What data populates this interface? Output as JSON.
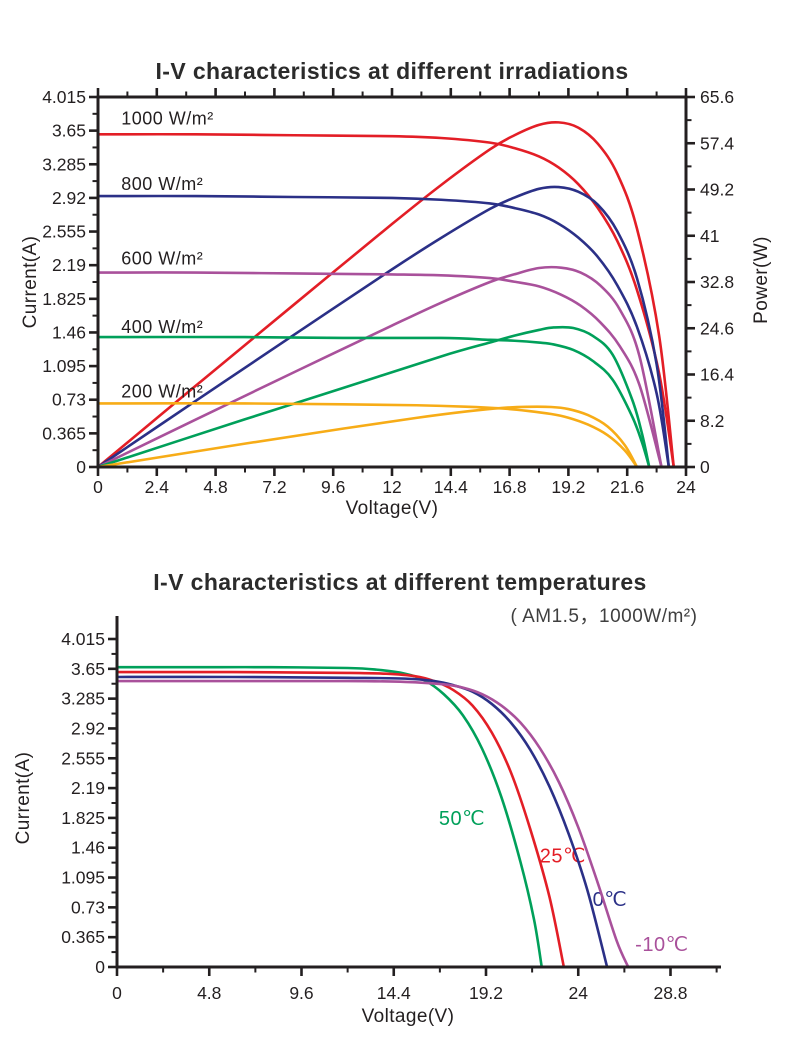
{
  "figure": {
    "background": "#ffffff",
    "text_color": "#231f20"
  },
  "chart_data": [
    {
      "chart_type": "line",
      "title": "I-V characteristics at different irradiations",
      "xlabel": "Voltage(V)",
      "ylabel_left": "Current(A)",
      "ylabel_right": "Power(W)",
      "xlim": [
        0,
        24
      ],
      "ylim_left": [
        0,
        4.015
      ],
      "ylim_right": [
        0,
        65.6
      ],
      "x_ticks": [
        0,
        2.4,
        4.8,
        7.2,
        9.6,
        12,
        14.4,
        16.8,
        19.2,
        21.6,
        24
      ],
      "y_left_ticks": [
        0,
        0.365,
        0.73,
        1.095,
        1.46,
        1.825,
        2.19,
        2.555,
        2.92,
        3.285,
        3.65,
        4.015
      ],
      "y_right_ticks": [
        0,
        8.2,
        16.4,
        24.6,
        32.8,
        41,
        49.2,
        57.4,
        65.6
      ],
      "grid": false,
      "power_curves": "For each irradiance a power curve P = V × I is drawn against the right axis",
      "series": [
        {
          "name": "1000 W/m²",
          "color": "#e31e26",
          "isc_A": 3.61,
          "voc_V": 23.5,
          "peak_power_W": 61,
          "label_pos": {
            "v": 0.95,
            "i": 3.78,
            "anchor": "start"
          },
          "iv_points": [
            [
              0,
              3.61
            ],
            [
              4,
              3.61
            ],
            [
              8,
              3.6
            ],
            [
              12,
              3.59
            ],
            [
              14,
              3.57
            ],
            [
              16,
              3.52
            ],
            [
              17,
              3.46
            ],
            [
              18,
              3.37
            ],
            [
              18.8,
              3.25
            ],
            [
              19.6,
              3.07
            ],
            [
              20.4,
              2.81
            ],
            [
              21.2,
              2.45
            ],
            [
              22,
              1.92
            ],
            [
              22.9,
              1.02
            ],
            [
              23.5,
              0
            ]
          ]
        },
        {
          "name": "800 W/m²",
          "color": "#2b3087",
          "isc_A": 2.94,
          "voc_V": 23.3,
          "peak_power_W": 49.6,
          "label_pos": {
            "v": 0.95,
            "i": 3.07,
            "anchor": "start"
          },
          "iv_points": [
            [
              0,
              2.94
            ],
            [
              4,
              2.94
            ],
            [
              8,
              2.93
            ],
            [
              12,
              2.92
            ],
            [
              14,
              2.9
            ],
            [
              16,
              2.86
            ],
            [
              17,
              2.81
            ],
            [
              18,
              2.74
            ],
            [
              18.8,
              2.64
            ],
            [
              19.6,
              2.49
            ],
            [
              20.4,
              2.28
            ],
            [
              21.2,
              1.97
            ],
            [
              22,
              1.52
            ],
            [
              22.8,
              0.8
            ],
            [
              23.3,
              0
            ]
          ]
        },
        {
          "name": "600 W/m²",
          "color": "#a9519b",
          "isc_A": 2.11,
          "voc_V": 23,
          "peak_power_W": 35.5,
          "label_pos": {
            "v": 0.95,
            "i": 2.26,
            "anchor": "start"
          },
          "iv_points": [
            [
              0,
              2.11
            ],
            [
              4,
              2.11
            ],
            [
              8,
              2.1
            ],
            [
              12,
              2.09
            ],
            [
              14,
              2.08
            ],
            [
              16,
              2.05
            ],
            [
              17,
              2.01
            ],
            [
              18,
              1.96
            ],
            [
              18.9,
              1.87
            ],
            [
              19.7,
              1.75
            ],
            [
              20.5,
              1.57
            ],
            [
              21.3,
              1.31
            ],
            [
              22.1,
              0.89
            ],
            [
              23,
              0
            ]
          ]
        },
        {
          "name": "400 W/m²",
          "color": "#00a05a",
          "isc_A": 1.41,
          "voc_V": 22.5,
          "peak_power_W": 24.7,
          "label_pos": {
            "v": 0.95,
            "i": 1.52,
            "anchor": "start"
          },
          "iv_points": [
            [
              0,
              1.41
            ],
            [
              6,
              1.41
            ],
            [
              10,
              1.4
            ],
            [
              14,
              1.4
            ],
            [
              16,
              1.38
            ],
            [
              17,
              1.37
            ],
            [
              18,
              1.35
            ],
            [
              18.6,
              1.33
            ],
            [
              19.4,
              1.27
            ],
            [
              20.2,
              1.15
            ],
            [
              21,
              0.95
            ],
            [
              21.8,
              0.55
            ],
            [
              22.2,
              0.27
            ],
            [
              22.5,
              0
            ]
          ]
        },
        {
          "name": "200 W/m²",
          "color": "#f7ac17",
          "isc_A": 0.69,
          "voc_V": 22,
          "peak_power_W": 10.7,
          "label_pos": {
            "v": 0.95,
            "i": 0.82,
            "anchor": "start"
          },
          "iv_points": [
            [
              0,
              0.69
            ],
            [
              6,
              0.69
            ],
            [
              10,
              0.68
            ],
            [
              13,
              0.67
            ],
            [
              15,
              0.655
            ],
            [
              16.5,
              0.635
            ],
            [
              17.5,
              0.61
            ],
            [
              18.5,
              0.575
            ],
            [
              19.2,
              0.535
            ],
            [
              20,
              0.46
            ],
            [
              20.8,
              0.345
            ],
            [
              21.5,
              0.18
            ],
            [
              22,
              0
            ]
          ]
        }
      ]
    },
    {
      "chart_type": "line",
      "title": "I-V characteristics at different temperatures",
      "subtitle": "( AM1.5，1000W/m²)",
      "xlabel": "Voltage(V)",
      "ylabel_left": "Current(A)",
      "xlim": [
        0,
        28.8
      ],
      "ylim_left": [
        0,
        4.015
      ],
      "x_ticks": [
        0,
        4.8,
        9.6,
        14.4,
        19.2,
        24,
        28.8
      ],
      "y_left_ticks": [
        0,
        0.365,
        0.73,
        1.095,
        1.46,
        1.825,
        2.19,
        2.555,
        2.92,
        3.285,
        3.65,
        4.015
      ],
      "grid": false,
      "series": [
        {
          "name": "50℃",
          "color": "#00a05a",
          "isc_A": 3.67,
          "voc_V": 22.1,
          "label_pos": {
            "v": 17.95,
            "i": 1.81,
            "anchor": "middle"
          },
          "iv_points": [
            [
              0,
              3.67
            ],
            [
              4,
              3.67
            ],
            [
              8,
              3.67
            ],
            [
              12,
              3.66
            ],
            [
              13.5,
              3.64
            ],
            [
              15,
              3.59
            ],
            [
              16,
              3.51
            ],
            [
              17,
              3.34
            ],
            [
              18,
              3.08
            ],
            [
              19,
              2.67
            ],
            [
              20,
              2.08
            ],
            [
              21,
              1.28
            ],
            [
              21.7,
              0.58
            ],
            [
              22.1,
              0
            ]
          ]
        },
        {
          "name": "25℃",
          "color": "#e31e26",
          "isc_A": 3.61,
          "voc_V": 23.25,
          "label_pos": {
            "v": 23.2,
            "i": 1.35,
            "anchor": "middle"
          },
          "iv_points": [
            [
              0,
              3.61
            ],
            [
              6,
              3.61
            ],
            [
              12,
              3.6
            ],
            [
              14,
              3.59
            ],
            [
              15.5,
              3.56
            ],
            [
              16.5,
              3.5
            ],
            [
              17.5,
              3.39
            ],
            [
              18.5,
              3.2
            ],
            [
              19.5,
              2.87
            ],
            [
              20.5,
              2.38
            ],
            [
              21.5,
              1.69
            ],
            [
              22.5,
              0.86
            ],
            [
              23.25,
              0
            ]
          ]
        },
        {
          "name": "0℃",
          "color": "#2b3087",
          "isc_A": 3.55,
          "voc_V": 25.5,
          "label_pos": {
            "v": 25.65,
            "i": 0.82,
            "anchor": "middle"
          },
          "iv_points": [
            [
              0,
              3.55
            ],
            [
              6,
              3.55
            ],
            [
              12,
              3.54
            ],
            [
              15,
              3.53
            ],
            [
              16.5,
              3.5
            ],
            [
              17.5,
              3.45
            ],
            [
              18.5,
              3.37
            ],
            [
              19.5,
              3.22
            ],
            [
              20.5,
              2.99
            ],
            [
              21.5,
              2.66
            ],
            [
              22.5,
              2.21
            ],
            [
              23.5,
              1.63
            ],
            [
              24.5,
              0.92
            ],
            [
              25.5,
              0
            ]
          ]
        },
        {
          "name": "-10℃",
          "color": "#a9519b",
          "isc_A": 3.5,
          "voc_V": 26.6,
          "label_pos": {
            "v": 28.35,
            "i": 0.27,
            "anchor": "middle"
          },
          "iv_points": [
            [
              0,
              3.5
            ],
            [
              6,
              3.5
            ],
            [
              12,
              3.5
            ],
            [
              15,
              3.49
            ],
            [
              17,
              3.46
            ],
            [
              18,
              3.42
            ],
            [
              19,
              3.34
            ],
            [
              20,
              3.2
            ],
            [
              21,
              2.99
            ],
            [
              22,
              2.68
            ],
            [
              23,
              2.26
            ],
            [
              24,
              1.71
            ],
            [
              25,
              1.04
            ],
            [
              26,
              0.32
            ],
            [
              26.6,
              0
            ]
          ]
        }
      ]
    }
  ]
}
